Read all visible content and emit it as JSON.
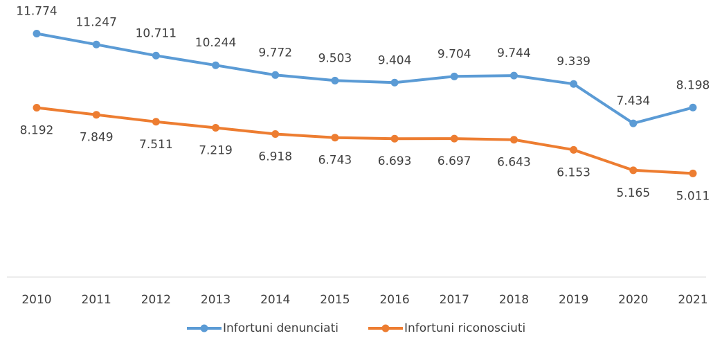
{
  "chart_data": {
    "type": "line",
    "categories": [
      "2010",
      "2011",
      "2012",
      "2013",
      "2014",
      "2015",
      "2016",
      "2017",
      "2018",
      "2019",
      "2020",
      "2021"
    ],
    "series": [
      {
        "name": "Infortuni denunciati",
        "color": "#5b9bd5",
        "values": [
          11774,
          11247,
          10711,
          10244,
          9772,
          9503,
          9404,
          9704,
          9744,
          9339,
          7434,
          8198
        ],
        "value_labels": [
          "11.774",
          "11.247",
          "10.711",
          "10.244",
          "9.772",
          "9.503",
          "9.404",
          "9.704",
          "9.744",
          "9.339",
          "7.434",
          "8.198"
        ]
      },
      {
        "name": "Infortuni riconosciuti",
        "color": "#ed7d31",
        "values": [
          8192,
          7849,
          7511,
          7219,
          6918,
          6743,
          6693,
          6697,
          6643,
          6153,
          5165,
          5011
        ],
        "value_labels": [
          "8.192",
          "7.849",
          "7.511",
          "7.219",
          "6.918",
          "6.743",
          "6.693",
          "6.697",
          "6.643",
          "6.153",
          "5.165",
          "5.011"
        ]
      }
    ],
    "ylim": [
      0,
      13400
    ],
    "legend": "bottom"
  }
}
